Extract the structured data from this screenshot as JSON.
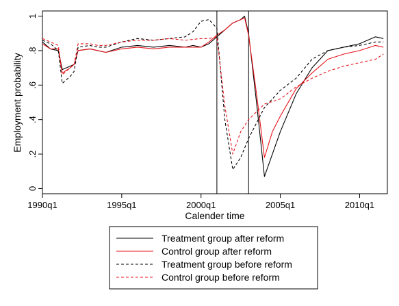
{
  "chart_data": {
    "type": "line",
    "xlabel": "Calender time",
    "ylabel": "Employment probability",
    "xlim": [
      1990.0,
      2011.75
    ],
    "ylim": [
      -0.03,
      1.03
    ],
    "x_ticks": [
      {
        "value": 1990.0,
        "label": "1990q1"
      },
      {
        "value": 1995.0,
        "label": "1995q1"
      },
      {
        "value": 2000.0,
        "label": "2000q1"
      },
      {
        "value": 2005.0,
        "label": "2005q1"
      },
      {
        "value": 2010.0,
        "label": "2010q1"
      }
    ],
    "y_ticks": [
      {
        "value": 0,
        "label": "0"
      },
      {
        "value": 0.2,
        "label": ".2"
      },
      {
        "value": 0.4,
        "label": ".4"
      },
      {
        "value": 0.6,
        "label": ".6"
      },
      {
        "value": 0.8,
        "label": ".8"
      },
      {
        "value": 1,
        "label": "1"
      }
    ],
    "vertical_lines": [
      2001.0,
      2003.0
    ],
    "grid": false,
    "legend_position": "bottom",
    "series": [
      {
        "name": "Treatment group after reform",
        "color": "#000000",
        "dash": "solid",
        "x": [
          1990.0,
          1990.5,
          1991.0,
          1991.25,
          1991.75,
          1992.0,
          1992.25,
          1993.0,
          1993.5,
          1994.0,
          1995.0,
          1996.0,
          1997.0,
          1998.0,
          1999.0,
          1999.5,
          2000.0,
          2000.5,
          2001.0,
          2001.5,
          2002.0,
          2002.5,
          2002.75,
          2003.0,
          2003.5,
          2004.0,
          2004.5,
          2005.0,
          2006.0,
          2007.0,
          2008.0,
          2009.0,
          2010.0,
          2011.0,
          2011.5
        ],
        "y": [
          0.85,
          0.81,
          0.8,
          0.69,
          0.71,
          0.72,
          0.8,
          0.81,
          0.8,
          0.79,
          0.82,
          0.83,
          0.82,
          0.83,
          0.82,
          0.83,
          0.82,
          0.84,
          0.88,
          0.92,
          0.96,
          0.98,
          1.0,
          0.9,
          0.5,
          0.07,
          0.2,
          0.33,
          0.55,
          0.7,
          0.8,
          0.82,
          0.84,
          0.88,
          0.87
        ]
      },
      {
        "name": "Control group after reform",
        "color": "#e8131b",
        "dash": "solid",
        "x": [
          1990.0,
          1990.5,
          1991.0,
          1991.25,
          1991.75,
          1992.0,
          1992.25,
          1993.0,
          1993.5,
          1994.0,
          1995.0,
          1996.0,
          1997.0,
          1998.0,
          1999.0,
          2000.0,
          2000.5,
          2001.0,
          2001.5,
          2002.0,
          2002.5,
          2002.75,
          2003.0,
          2003.5,
          2004.0,
          2004.5,
          2005.0,
          2006.0,
          2007.0,
          2008.0,
          2009.0,
          2010.0,
          2011.0,
          2011.5
        ],
        "y": [
          0.84,
          0.81,
          0.81,
          0.67,
          0.7,
          0.72,
          0.8,
          0.81,
          0.8,
          0.79,
          0.81,
          0.82,
          0.81,
          0.82,
          0.82,
          0.82,
          0.85,
          0.89,
          0.92,
          0.96,
          0.98,
          0.99,
          0.89,
          0.55,
          0.18,
          0.33,
          0.42,
          0.58,
          0.67,
          0.75,
          0.78,
          0.8,
          0.83,
          0.82
        ]
      },
      {
        "name": "Treatment group before reform",
        "color": "#000000",
        "dash": "dashed",
        "x": [
          1990.0,
          1990.5,
          1991.0,
          1991.25,
          1991.75,
          1992.0,
          1992.25,
          1993.0,
          1993.5,
          1994.0,
          1995.0,
          1996.0,
          1997.0,
          1998.0,
          1999.0,
          1999.5,
          2000.0,
          2000.5,
          2001.0,
          2001.5,
          2002.0,
          2002.5,
          2003.0,
          2004.0,
          2005.0,
          2006.0,
          2007.0,
          2008.0,
          2009.0,
          2010.0,
          2011.0,
          2011.5
        ],
        "y": [
          0.86,
          0.84,
          0.8,
          0.61,
          0.65,
          0.68,
          0.82,
          0.83,
          0.82,
          0.82,
          0.85,
          0.87,
          0.86,
          0.87,
          0.88,
          0.91,
          0.97,
          0.98,
          0.93,
          0.4,
          0.11,
          0.18,
          0.29,
          0.47,
          0.57,
          0.64,
          0.75,
          0.8,
          0.82,
          0.83,
          0.85,
          0.85
        ]
      },
      {
        "name": "Control group before reform",
        "color": "#e8131b",
        "dash": "dashed",
        "x": [
          1990.0,
          1990.5,
          1991.0,
          1991.25,
          1991.75,
          1992.0,
          1992.25,
          1993.0,
          1993.5,
          1994.0,
          1995.0,
          1996.0,
          1997.0,
          1998.0,
          1999.0,
          2000.0,
          2000.5,
          2001.0,
          2001.5,
          2002.0,
          2002.5,
          2003.0,
          2004.0,
          2005.0,
          2006.0,
          2007.0,
          2008.0,
          2009.0,
          2010.0,
          2011.0,
          2011.5
        ],
        "y": [
          0.87,
          0.85,
          0.83,
          0.66,
          0.7,
          0.72,
          0.84,
          0.84,
          0.83,
          0.83,
          0.85,
          0.86,
          0.86,
          0.87,
          0.86,
          0.87,
          0.87,
          0.88,
          0.48,
          0.2,
          0.33,
          0.4,
          0.49,
          0.52,
          0.59,
          0.64,
          0.68,
          0.71,
          0.73,
          0.75,
          0.78
        ]
      }
    ]
  }
}
